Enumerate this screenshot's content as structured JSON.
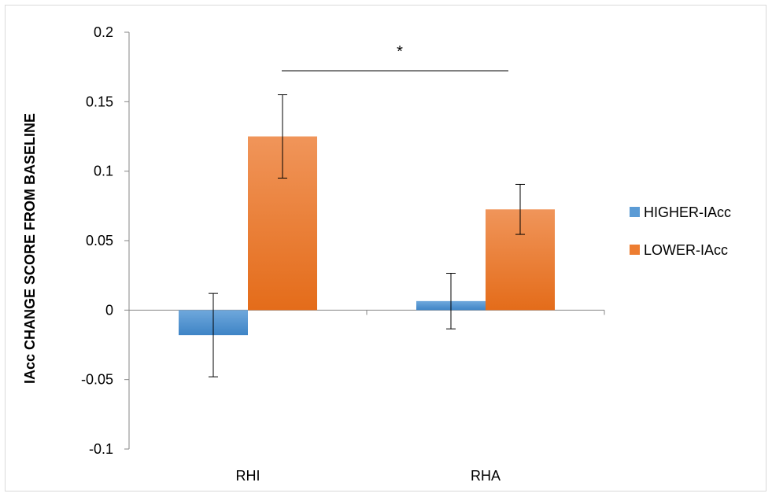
{
  "chart_data": {
    "type": "bar",
    "categories": [
      "RHI",
      "RHA"
    ],
    "series": [
      {
        "name": "HIGHER-IAcc",
        "values": [
          -0.018,
          0.0065
        ],
        "error": [
          0.03,
          0.02
        ],
        "color": "#5b9bd5"
      },
      {
        "name": "LOWER-IAcc",
        "values": [
          0.125,
          0.0725
        ],
        "error": [
          0.03,
          0.018
        ],
        "color": "#ed7d31"
      }
    ],
    "ylabel": "IAcc CHANGE SCORE FROM BASELINE",
    "ylim": [
      -0.1,
      0.2
    ],
    "yticks": [
      "-0.1",
      "-0.05",
      "0",
      "0.05",
      "0.1",
      "0.15",
      "0.2"
    ],
    "ytick_values": [
      -0.1,
      -0.05,
      0,
      0.05,
      0.1,
      0.15,
      0.2
    ],
    "annotation": "*",
    "grid": false,
    "legend_position": "right"
  }
}
